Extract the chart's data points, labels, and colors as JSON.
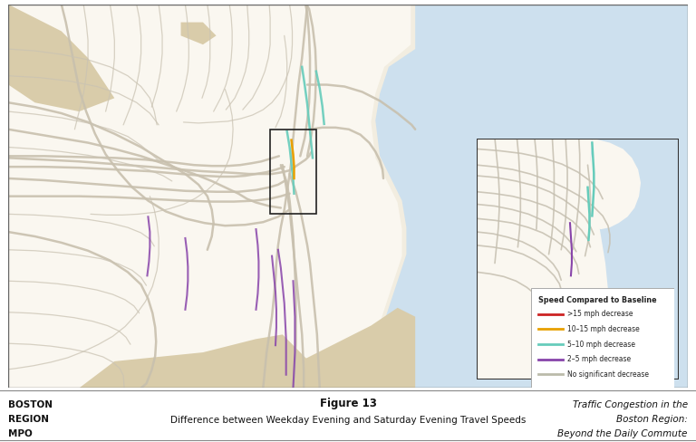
{
  "figure_width": 7.68,
  "figure_height": 4.88,
  "dpi": 100,
  "title_text": "Figure 13",
  "subtitle_text": "Difference between Weekday Evening and Saturday Evening Travel Speeds",
  "left_text_line1": "BOSTON",
  "left_text_line2": "REGION",
  "left_text_line3": "MPO",
  "right_text_line1": "Traffic Congestion in the",
  "right_text_line2": "Boston Region:",
  "right_text_line3": "Beyond the Daily Commute",
  "legend_title": "Speed Compared to Baseline",
  "legend_items": [
    {
      "label": ">15 mph decrease",
      "color": "#cc2222"
    },
    {
      "label": "10–15 mph decrease",
      "color": "#e8a000"
    },
    {
      "label": "5–10 mph decrease",
      "color": "#66ccbb"
    },
    {
      "label": "2–5 mph decrease",
      "color": "#8844aa"
    },
    {
      "label": "No significant decrease",
      "color": "#bbbbaa"
    }
  ],
  "map_bg": "#cde0ee",
  "land_bg": "#f5f0e0",
  "footer_line_color": "#888888",
  "outer_border_color": "#555555",
  "inset_border_color": "#333333"
}
